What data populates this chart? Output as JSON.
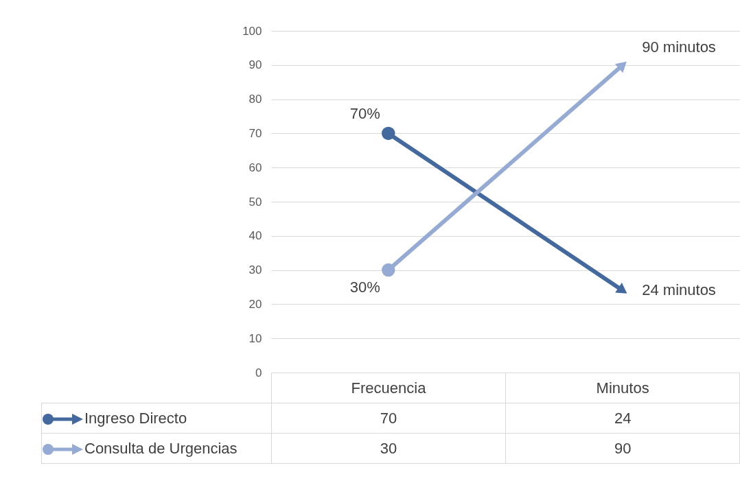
{
  "chart_data": {
    "type": "line",
    "categories": [
      "Frecuencia",
      "Minutos"
    ],
    "series": [
      {
        "name": "Ingreso Directo",
        "color": "#43699f",
        "values": [
          70,
          24
        ]
      },
      {
        "name": "Consulta de Urgencias",
        "color": "#95abd3",
        "values": [
          30,
          90
        ]
      }
    ],
    "annotations": [
      {
        "text": "70%",
        "x": "Frecuencia",
        "y": 70
      },
      {
        "text": "24 minutos",
        "x": "Minutos",
        "y": 24
      },
      {
        "text": "30%",
        "x": "Frecuencia",
        "y": 30
      },
      {
        "text": "90 minutos",
        "x": "Minutos",
        "y": 90
      }
    ],
    "ylim": [
      0,
      100
    ],
    "yticks": [
      0,
      10,
      20,
      30,
      40,
      50,
      60,
      70,
      80,
      90,
      100
    ],
    "grid": "y",
    "data_labels": true,
    "legend": "bottom",
    "marker": "circle"
  }
}
